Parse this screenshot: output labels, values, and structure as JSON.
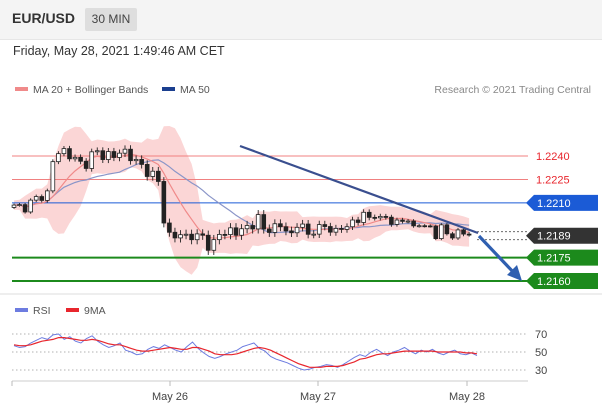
{
  "header": {
    "symbol": "EUR/USD",
    "timeframe": "30 MIN"
  },
  "datetime": "Friday, May 28, 2021 1:49:46 AM CET",
  "credit": "Research © 2021 Trading Central",
  "colors": {
    "resistance": "#e8262d",
    "pivot": "#1b5bd6",
    "support": "#1c8a1c",
    "current": "#333333",
    "ma20": "#f08a8a",
    "band_fill": "#fbd6d6",
    "ma50": "#8a95c8",
    "trendline": "#3a4f8f",
    "rsi": "#6d7ce0",
    "rsi_ma": "#e8262d"
  },
  "chart_data": [
    {
      "type": "candlestick",
      "legend": [
        {
          "name": "MA 20 + Bollinger Bands",
          "color": "#f08a8a"
        },
        {
          "name": "MA 50",
          "color": "#1b3f8f"
        }
      ],
      "legend_position": "top-left",
      "x_ticks": [
        "May 26",
        "May 27",
        "May 28"
      ],
      "y_range": [
        2160,
        2256
      ],
      "levels": [
        {
          "label": "1.2240",
          "value": 2240,
          "kind": "resistance"
        },
        {
          "label": "1.2225",
          "value": 2225,
          "kind": "resistance"
        },
        {
          "label": "1.2210",
          "value": 2210,
          "kind": "pivot"
        },
        {
          "label": "1.2189",
          "value": 2189,
          "kind": "current"
        },
        {
          "label": "1.2175",
          "value": 2175,
          "kind": "support"
        },
        {
          "label": "1.2160",
          "value": 2160,
          "kind": "support"
        }
      ]
    },
    {
      "type": "line",
      "legend": [
        {
          "name": "RSI",
          "color": "#6d7ce0"
        },
        {
          "name": "9MA",
          "color": "#e8262d"
        }
      ],
      "legend_position": "top-left",
      "y_ticks": [
        "70",
        "50",
        "30"
      ],
      "y_range": [
        20,
        80
      ],
      "rsi": [
        57,
        55,
        56,
        60,
        63,
        66,
        64,
        69,
        70,
        64,
        67,
        62,
        60,
        65,
        68,
        62,
        58,
        55,
        57,
        60,
        52,
        50,
        47,
        48,
        53,
        56,
        54,
        58,
        55,
        52,
        50,
        56,
        61,
        54,
        49,
        45,
        43,
        45,
        48,
        50,
        52,
        56,
        58,
        60,
        54,
        51,
        45,
        42,
        40,
        38,
        35,
        32,
        30,
        31,
        33,
        34,
        36,
        35,
        33,
        36,
        40,
        44,
        47,
        45,
        50,
        53,
        49,
        46,
        50,
        52,
        55,
        51,
        48,
        52,
        50,
        53,
        49,
        47,
        50,
        52,
        48,
        47,
        49,
        46
      ],
      "rsi_ma": [
        58,
        57,
        57,
        58,
        60,
        62,
        63,
        64,
        66,
        66,
        65,
        64,
        63,
        63,
        64,
        63,
        61,
        59,
        58,
        58,
        56,
        54,
        52,
        51,
        51,
        52,
        53,
        54,
        55,
        54,
        53,
        53,
        55,
        55,
        53,
        51,
        48,
        47,
        47,
        47,
        48,
        50,
        52,
        54,
        55,
        54,
        52,
        49,
        46,
        43,
        40,
        37,
        35,
        33,
        33,
        33,
        34,
        34,
        34,
        35,
        37,
        39,
        42,
        43,
        45,
        47,
        48,
        48,
        49,
        50,
        51,
        51,
        51,
        51,
        51,
        51,
        50,
        50,
        50,
        50,
        50,
        49,
        49,
        48
      ]
    }
  ]
}
